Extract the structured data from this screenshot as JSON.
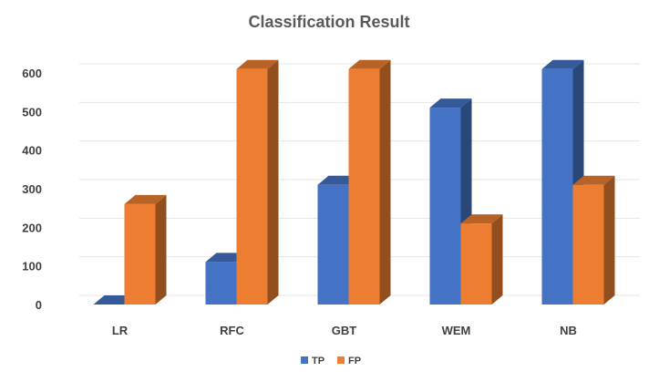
{
  "chart_data": {
    "type": "bar",
    "title": "Classification Result",
    "categories": [
      "LR",
      "RFC",
      "GBT",
      "WEM",
      "NB"
    ],
    "series": [
      {
        "name": "TP",
        "values": [
          0,
          110,
          310,
          510,
          610
        ]
      },
      {
        "name": "FP",
        "values": [
          260,
          610,
          610,
          210,
          310
        ]
      }
    ],
    "ylim": [
      0,
      600
    ],
    "yticks": [
      0,
      100,
      200,
      300,
      400,
      500,
      600
    ],
    "grid": true,
    "legend_position": "bottom",
    "colors": {
      "TP": "#4472c4",
      "FP": "#ed7d31"
    }
  }
}
